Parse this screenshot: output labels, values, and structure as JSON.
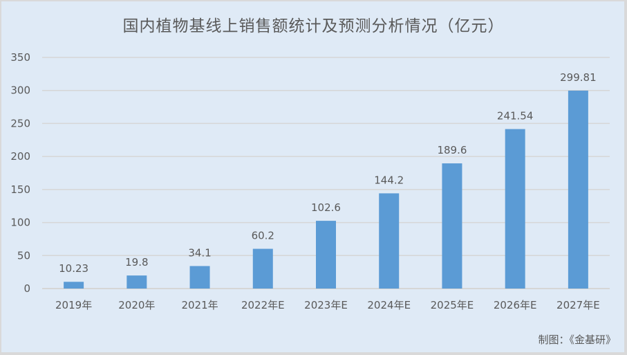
{
  "chart_data": {
    "type": "bar",
    "title": "国内植物基线上销售额统计及预测分析情况（亿元）",
    "categories": [
      "2019年",
      "2020年",
      "2021年",
      "2022年E",
      "2023年E",
      "2024年E",
      "2025年E",
      "2026年E",
      "2027年E"
    ],
    "values": [
      10.23,
      19.8,
      34.1,
      60.2,
      102.6,
      144.2,
      189.6,
      241.54,
      299.81
    ],
    "data_labels": [
      "10.23",
      "19.8",
      "34.1",
      "60.2",
      "102.6",
      "144.2",
      "189.6",
      "241.54",
      "299.81"
    ],
    "ylim": [
      0,
      350
    ],
    "yticks": [
      0,
      50,
      100,
      150,
      200,
      250,
      300,
      350
    ],
    "grid": true,
    "legend": "none",
    "colors": {
      "bar": "#5b9bd5",
      "background": "#dfeaf6",
      "grid": "#d6d6d6",
      "text": "#595959"
    }
  },
  "footer": {
    "credit": "制图：《金基研》"
  }
}
